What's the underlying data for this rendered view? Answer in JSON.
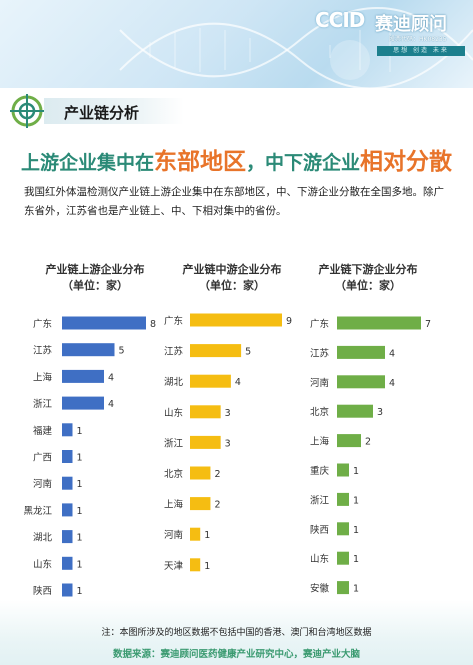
{
  "header": {
    "logo_mark": "CCID",
    "logo_name": "赛迪顾问",
    "stock_code": "股票代码：HK08235",
    "slogan": "思想 创造 未来"
  },
  "section": {
    "title": "产业链分析"
  },
  "headline": {
    "part1": "上游企业集中在",
    "highlight1": "东部地区",
    "part2": "，中下游企业",
    "highlight2": "相对分散"
  },
  "intro": "我国红外体温检测仪产业链上游企业集中在东部地区，中、下游企业分散在全国多地。除广东省外，江苏省也是产业链上、中、下相对集中的省份。",
  "chart_data": [
    {
      "type": "bar",
      "orientation": "horizontal",
      "title": "产业链上游企业分布",
      "subtitle": "（单位：家）",
      "color": "#3f6fc4",
      "categories": [
        "广东",
        "江苏",
        "上海",
        "浙江",
        "福建",
        "广西",
        "河南",
        "黑龙江",
        "湖北",
        "山东",
        "陕西"
      ],
      "values": [
        8,
        5,
        4,
        4,
        1,
        1,
        1,
        1,
        1,
        1,
        1
      ],
      "xlim": [
        0,
        8
      ],
      "grid": false
    },
    {
      "type": "bar",
      "orientation": "horizontal",
      "title": "产业链中游企业分布",
      "subtitle": "（单位：家）",
      "color": "#f5bd12",
      "categories": [
        "广东",
        "江苏",
        "湖北",
        "山东",
        "浙江",
        "北京",
        "上海",
        "河南",
        "天津"
      ],
      "values": [
        9,
        5,
        4,
        3,
        3,
        2,
        2,
        1,
        1
      ],
      "xlim": [
        0,
        9
      ],
      "grid": false
    },
    {
      "type": "bar",
      "orientation": "horizontal",
      "title": "产业链下游企业分布",
      "subtitle": "（单位：家）",
      "color": "#6fae47",
      "categories": [
        "广东",
        "江苏",
        "河南",
        "北京",
        "上海",
        "重庆",
        "浙江",
        "陕西",
        "山东",
        "安徽"
      ],
      "values": [
        7,
        4,
        4,
        3,
        2,
        1,
        1,
        1,
        1,
        1
      ],
      "xlim": [
        0,
        7
      ],
      "grid": false
    }
  ],
  "footnote": "注：本图所涉及的地区数据不包括中国的香港、澳门和台湾地区数据",
  "source": "数据来源：赛迪顾问医药健康产业研究中心，赛迪产业大脑"
}
